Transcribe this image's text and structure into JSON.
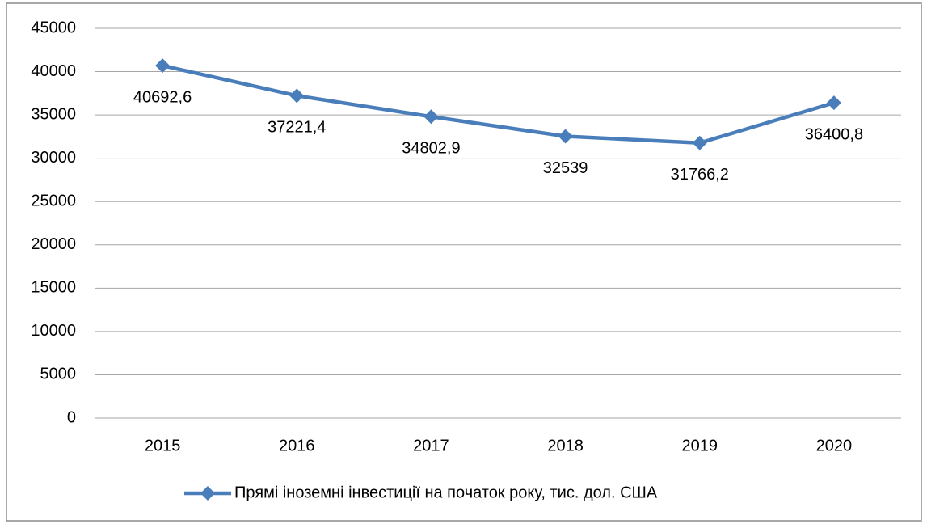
{
  "chart_data": {
    "type": "line",
    "categories": [
      "2015",
      "2016",
      "2017",
      "2018",
      "2019",
      "2020"
    ],
    "series": [
      {
        "name": "Прямі іноземні інвестиції на початок року, тис. дол. США",
        "color": "#4a7ebb",
        "values": [
          40692.6,
          37221.4,
          34802.9,
          32539,
          31766.2,
          36400.8
        ],
        "value_labels": [
          "40692,6",
          "37221,4",
          "34802,9",
          "32539",
          "31766,2",
          "36400,8"
        ]
      }
    ],
    "ylim": [
      0,
      45000
    ],
    "yticks": [
      0,
      5000,
      10000,
      15000,
      20000,
      25000,
      30000,
      35000,
      40000,
      45000
    ],
    "grid": true,
    "legend": "bottom"
  }
}
